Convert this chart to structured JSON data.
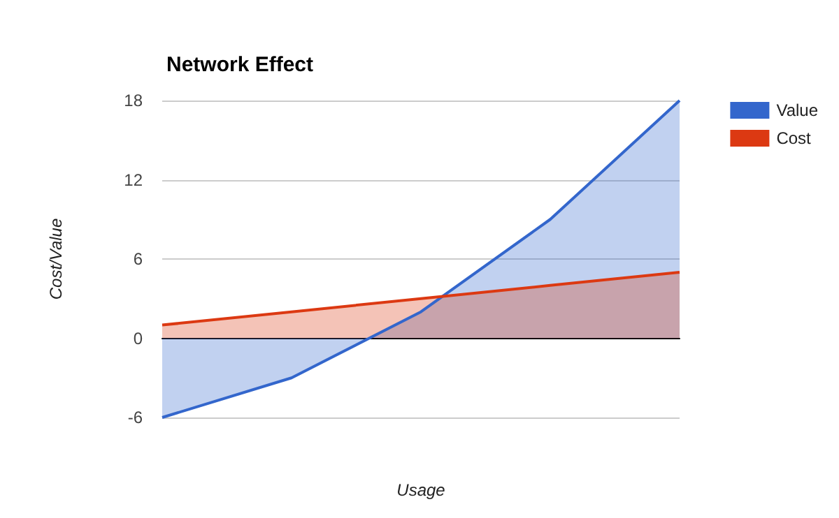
{
  "chart_data": {
    "type": "area",
    "title": "Network Effect",
    "xlabel": "Usage",
    "ylabel": "Cost/Value",
    "categories": [
      null,
      null,
      null,
      null,
      null
    ],
    "series": [
      {
        "name": "Value",
        "color": "#3366cc",
        "values": [
          -6,
          -3,
          2,
          9,
          18
        ]
      },
      {
        "name": "Cost",
        "color": "#dc3912",
        "values": [
          1,
          2,
          3,
          4,
          5
        ]
      }
    ],
    "ylim": [
      -6,
      18
    ],
    "yticks": [
      -6,
      0,
      6,
      12,
      18
    ],
    "grid": "y",
    "legend": "top right"
  }
}
